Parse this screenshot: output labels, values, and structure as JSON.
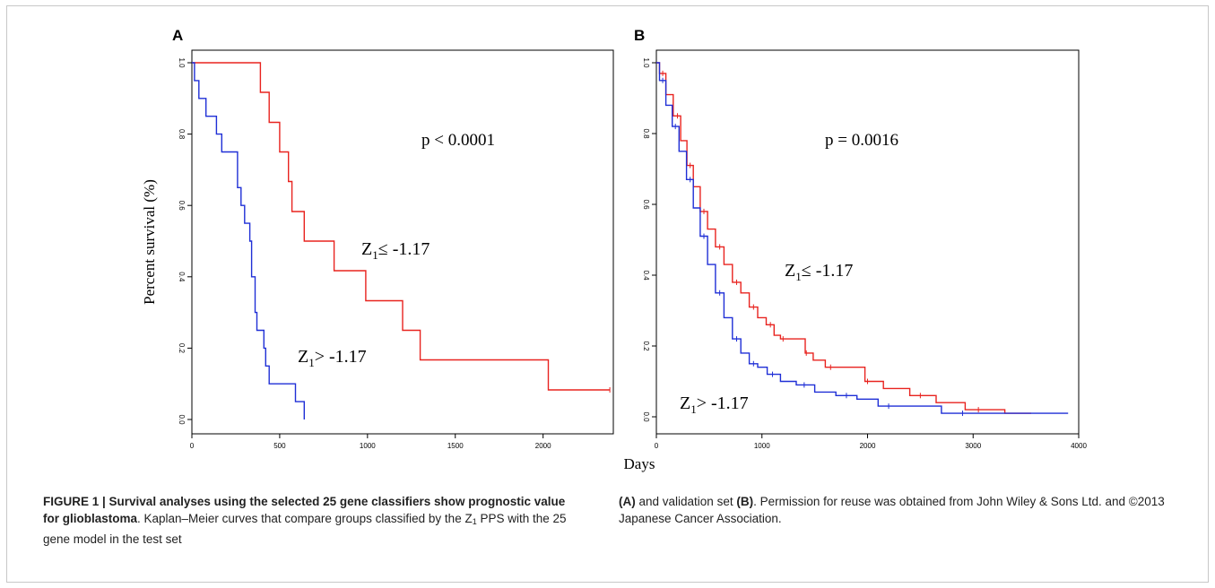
{
  "figure": {
    "caption_title": "FIGURE 1 | Survival analyses using the selected 25 gene classifiers show prognostic value for glioblastoma",
    "caption_body_1": ". Kaplan–Meier curves that compare groups classified by the Z",
    "caption_sub": "1",
    "caption_body_2": " PPS with the 25 gene model in the test set ",
    "caption_A": "(A)",
    "caption_body_3": " and validation set ",
    "caption_B": "(B)",
    "caption_body_4": ". Permission for reuse was obtained from John Wiley & Sons Ltd. and ©2013 Japanese Cancer Association."
  },
  "colors": {
    "red_group": "#e8231f",
    "blue_group": "#1f2fd6",
    "axis": "#000000"
  },
  "chart_data": [
    {
      "type": "line",
      "panel_label": "A",
      "ylabel": "Percent survival  (%)",
      "xlabel": "",
      "xlim": [
        0,
        2400
      ],
      "ylim": [
        0,
        1
      ],
      "xticks": [
        0,
        500,
        1000,
        1500,
        2000
      ],
      "yticks": [
        "0.0",
        "0.2",
        "0.4",
        "0.6",
        "0.8",
        "1.0"
      ],
      "annotation": "p < 0.0001",
      "series": [
        {
          "name": "Z1≤ -1.17",
          "color": "#e8231f",
          "x": [
            0,
            390,
            390,
            440,
            440,
            500,
            500,
            550,
            550,
            570,
            570,
            620,
            620,
            640,
            640,
            810,
            810,
            990,
            990,
            1200,
            1200,
            1300,
            1300,
            2030,
            2030,
            2380
          ],
          "y": [
            1.0,
            1.0,
            0.917,
            0.917,
            0.833,
            0.833,
            0.75,
            0.75,
            0.667,
            0.667,
            0.583,
            0.583,
            0.583,
            0.583,
            0.5,
            0.5,
            0.417,
            0.417,
            0.333,
            0.333,
            0.25,
            0.25,
            0.167,
            0.167,
            0.083,
            0.083
          ]
        },
        {
          "name": "Z1> -1.17",
          "color": "#1f2fd6",
          "x": [
            0,
            15,
            15,
            40,
            40,
            80,
            80,
            140,
            140,
            170,
            170,
            260,
            260,
            280,
            280,
            300,
            300,
            330,
            330,
            340,
            340,
            360,
            360,
            370,
            370,
            410,
            410,
            420,
            420,
            440,
            440,
            460,
            460,
            590,
            590,
            640,
            640
          ],
          "y": [
            1.0,
            1.0,
            0.95,
            0.95,
            0.9,
            0.9,
            0.85,
            0.85,
            0.8,
            0.8,
            0.75,
            0.75,
            0.65,
            0.65,
            0.6,
            0.6,
            0.55,
            0.55,
            0.5,
            0.5,
            0.4,
            0.4,
            0.3,
            0.3,
            0.25,
            0.25,
            0.2,
            0.2,
            0.15,
            0.15,
            0.1,
            0.1,
            0.1,
            0.1,
            0.05,
            0.05,
            0.0
          ]
        }
      ]
    },
    {
      "type": "line",
      "panel_label": "B",
      "ylabel": "",
      "xlabel": "Days",
      "xlim": [
        0,
        4000
      ],
      "ylim": [
        0,
        1
      ],
      "xticks": [
        0,
        1000,
        2000,
        3000,
        4000
      ],
      "yticks": [
        "0.0",
        "0.2",
        "0.4",
        "0.6",
        "0.8",
        "1.0"
      ],
      "annotation": "p = 0.0016",
      "series": [
        {
          "name": "Z1≤ -1.17",
          "color": "#e8231f",
          "x": [
            0,
            60,
            120,
            200,
            260,
            320,
            380,
            450,
            520,
            600,
            680,
            760,
            840,
            920,
            1000,
            1080,
            1150,
            1200,
            1400,
            1420,
            1550,
            1650,
            1950,
            2000,
            2300,
            2500,
            2800,
            3050,
            3550
          ],
          "y": [
            1.0,
            0.97,
            0.91,
            0.85,
            0.78,
            0.71,
            0.65,
            0.58,
            0.53,
            0.48,
            0.43,
            0.38,
            0.35,
            0.31,
            0.28,
            0.26,
            0.23,
            0.22,
            0.22,
            0.18,
            0.16,
            0.14,
            0.14,
            0.1,
            0.08,
            0.06,
            0.04,
            0.02,
            0.01
          ]
        },
        {
          "name": "Z1> -1.17",
          "color": "#1f2fd6",
          "x": [
            0,
            60,
            120,
            180,
            250,
            320,
            380,
            450,
            520,
            600,
            680,
            760,
            840,
            920,
            1000,
            1100,
            1250,
            1400,
            1600,
            1800,
            2000,
            2200,
            2500,
            2900,
            3300,
            3900
          ],
          "y": [
            1.0,
            0.95,
            0.88,
            0.82,
            0.75,
            0.67,
            0.59,
            0.51,
            0.43,
            0.35,
            0.28,
            0.22,
            0.18,
            0.15,
            0.14,
            0.12,
            0.1,
            0.09,
            0.07,
            0.06,
            0.05,
            0.03,
            0.03,
            0.01,
            0.01,
            0.01
          ]
        }
      ]
    }
  ]
}
